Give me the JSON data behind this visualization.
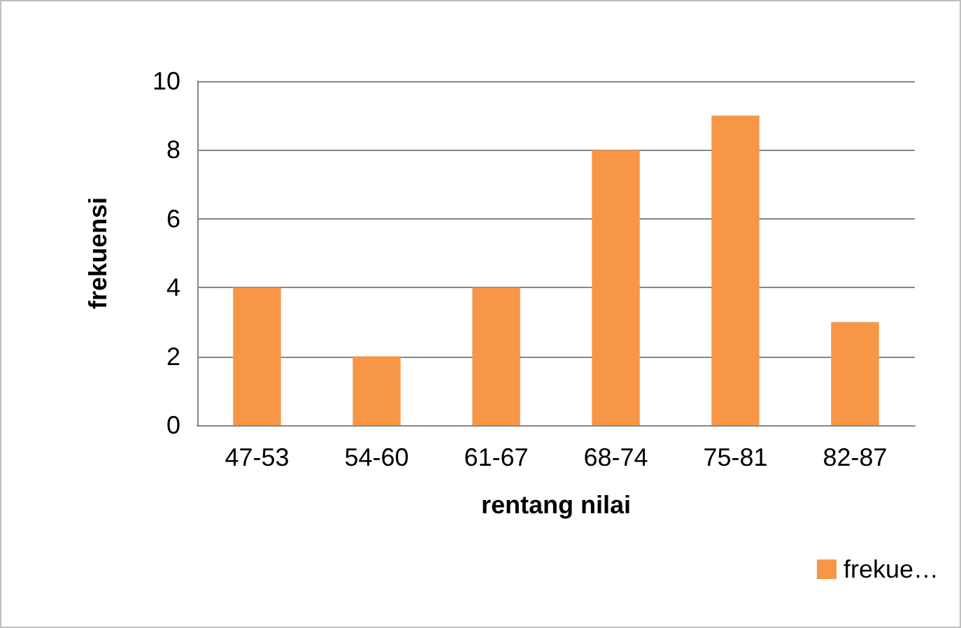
{
  "chart_data": {
    "type": "bar",
    "categories": [
      "47-53",
      "54-60",
      "61-67",
      "68-74",
      "75-81",
      "82-87"
    ],
    "series": [
      {
        "name": "frekue…",
        "color": "#f79646",
        "values": [
          4,
          2,
          4,
          8,
          9,
          3
        ]
      }
    ],
    "xlabel": "rentang nilai",
    "ylabel": "frekuensi",
    "ylim": [
      0,
      10
    ],
    "yticks": [
      0,
      2,
      4,
      6,
      8,
      10
    ],
    "grid": "y",
    "legend": "bottom right"
  }
}
